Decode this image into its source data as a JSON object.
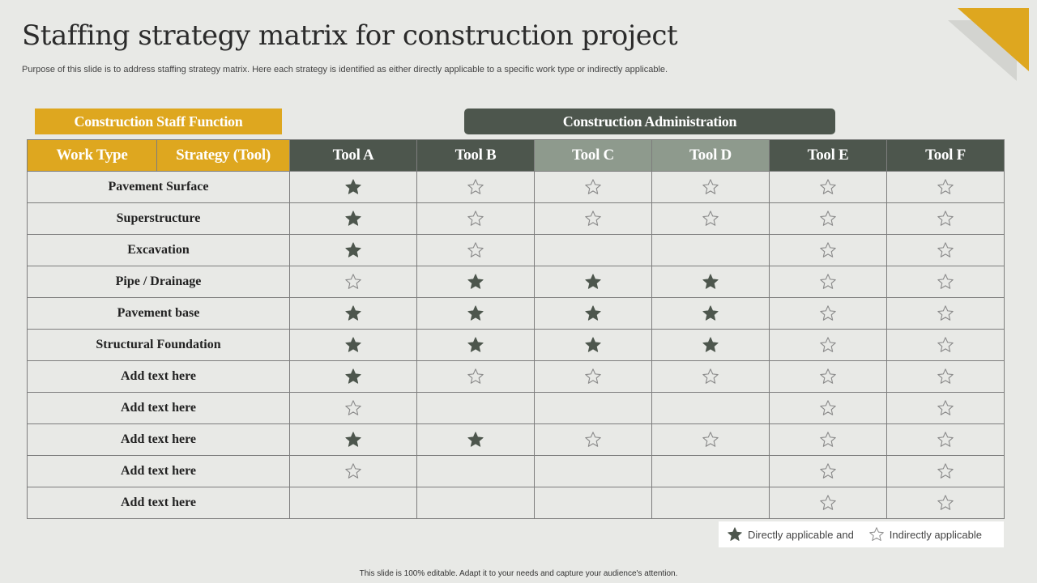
{
  "title": "Staffing strategy matrix for construction project",
  "subtitle": "Purpose of this slide is to address staffing strategy matrix. Here each strategy is identified as either directly applicable to a specific work type  or indirectly applicable.",
  "group_headers": {
    "staff_function": "Construction Staff Function",
    "administration": "Construction Administration"
  },
  "columns": {
    "work_type": "Work Type",
    "strategy": "Strategy (Tool)",
    "tools": [
      "Tool A",
      "Tool B",
      "Tool C",
      "Tool D",
      "Tool E",
      "Tool F"
    ]
  },
  "rows": [
    {
      "label": "Pavement Surface",
      "cells": [
        "filled",
        "outline",
        "outline",
        "outline",
        "outline",
        "outline"
      ]
    },
    {
      "label": "Superstructure",
      "cells": [
        "filled",
        "outline",
        "outline",
        "outline",
        "outline",
        "outline"
      ]
    },
    {
      "label": "Excavation",
      "cells": [
        "filled",
        "outline",
        "",
        "",
        "outline",
        "outline"
      ]
    },
    {
      "label": "Pipe / Drainage",
      "cells": [
        "outline",
        "filled",
        "filled",
        "filled",
        "outline",
        "outline"
      ]
    },
    {
      "label": "Pavement base",
      "cells": [
        "filled",
        "filled",
        "filled",
        "filled",
        "outline",
        "outline"
      ]
    },
    {
      "label": "Structural Foundation",
      "cells": [
        "filled",
        "filled",
        "filled",
        "filled",
        "outline",
        "outline"
      ]
    },
    {
      "label": "Add text here",
      "cells": [
        "filled",
        "outline",
        "outline",
        "outline",
        "outline",
        "outline"
      ]
    },
    {
      "label": "Add text here",
      "cells": [
        "outline",
        "",
        "",
        "",
        "outline",
        "outline"
      ]
    },
    {
      "label": "Add text here",
      "cells": [
        "filled",
        "filled",
        "outline",
        "outline",
        "outline",
        "outline"
      ]
    },
    {
      "label": "Add text here",
      "cells": [
        "outline",
        "",
        "",
        "",
        "outline",
        "outline"
      ]
    },
    {
      "label": "Add text here",
      "cells": [
        "",
        "",
        "",
        "",
        "outline",
        "outline"
      ]
    }
  ],
  "legend": {
    "direct": "Directly applicable and",
    "indirect": "Indirectly applicable"
  },
  "footer": "This slide is 100% editable. Adapt it to your needs and capture your audience's attention.",
  "colors": {
    "accent_gold": "#dea71f",
    "dark_green": "#4d564d",
    "light_green": "#8e9a8d",
    "background": "#e8e9e6"
  }
}
